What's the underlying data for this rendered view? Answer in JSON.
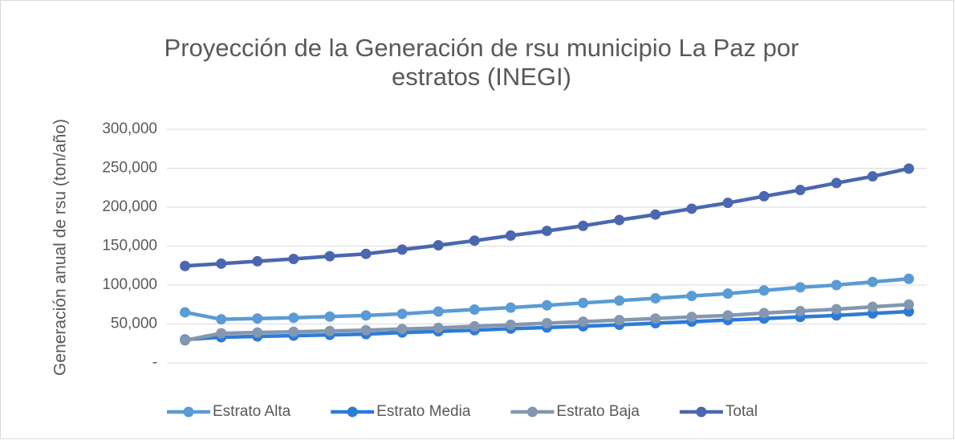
{
  "chart_data": {
    "type": "line",
    "title": "Proyección de la Generación de rsu municipio La Paz por estratos (INEGI)",
    "y_label": "Generación anual de rsu (ton/año)",
    "categories": [
      null,
      null,
      null,
      null,
      null,
      null,
      null,
      null,
      null,
      null,
      null,
      null,
      null,
      null,
      null,
      null,
      null,
      null,
      null,
      null,
      null
    ],
    "series": [
      {
        "name": "Estrato Alta",
        "color": "#5b9bd5",
        "values": [
          65000,
          56000,
          57000,
          58000,
          59500,
          61000,
          63000,
          66000,
          68500,
          71000,
          74000,
          77000,
          80000,
          83000,
          86000,
          89000,
          93000,
          97000,
          100000,
          104000,
          108000
        ]
      },
      {
        "name": "Estrato Media",
        "color": "#2e7bd6",
        "values": [
          30000,
          33000,
          34000,
          35000,
          36000,
          37000,
          39000,
          40500,
          42000,
          44000,
          45500,
          47000,
          49000,
          51000,
          53000,
          55000,
          57000,
          59000,
          61000,
          63500,
          66000
        ]
      },
      {
        "name": "Estrato Baja",
        "color": "#8497b0",
        "values": [
          29000,
          38000,
          39000,
          40000,
          41000,
          42000,
          43500,
          45000,
          47000,
          49000,
          51000,
          53000,
          55000,
          57000,
          59000,
          61000,
          64000,
          66500,
          69000,
          72000,
          75000
        ]
      },
      {
        "name": "Total",
        "color": "#4a67b0",
        "values": [
          124500,
          127500,
          130500,
          133500,
          137000,
          140000,
          145500,
          151000,
          157000,
          163500,
          169500,
          176000,
          183500,
          190500,
          198000,
          205500,
          214000,
          222000,
          231000,
          239500,
          249500
        ]
      }
    ],
    "ylim": [
      0,
      300000
    ],
    "yticks": [
      {
        "value": 0,
        "label": "-"
      },
      {
        "value": 50000,
        "label": "50,000"
      },
      {
        "value": 100000,
        "label": "100,000"
      },
      {
        "value": 150000,
        "label": "150,000"
      },
      {
        "value": 200000,
        "label": "200,000"
      },
      {
        "value": 250000,
        "label": "250,000"
      },
      {
        "value": 300000,
        "label": "300,000"
      }
    ],
    "grid": true,
    "legend": "bottom"
  }
}
